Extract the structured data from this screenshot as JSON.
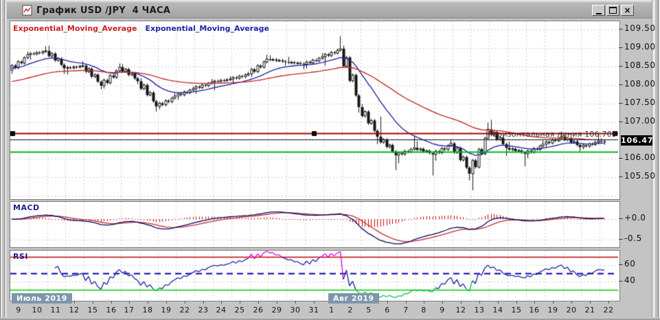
{
  "window": {
    "title": "График USD /JPY  4 ЧАСА",
    "buttons": {
      "minimize": "minimize",
      "maximize": "maximize",
      "close": "×"
    }
  },
  "legend": [
    {
      "label": "Exponential_Moving_Average",
      "color": "#cc2222"
    },
    {
      "label": "Exponential_Moving_Average",
      "color": "#2424a8"
    }
  ],
  "chart_data": [
    {
      "type": "candlestick",
      "title": "USD/JPY 4 hours",
      "x_labels": [
        "9",
        "10",
        "11",
        "12",
        "15",
        "16",
        "17",
        "18",
        "19",
        "22",
        "23",
        "24",
        "25",
        "26",
        "29",
        "30",
        "31",
        "1",
        "2",
        "5",
        "6",
        "7",
        "8",
        "9",
        "12",
        "13",
        "14",
        "15",
        "16",
        "19",
        "20",
        "21",
        "22"
      ],
      "month_labels": [
        {
          "text": "Июль 2019",
          "at_day": 0
        },
        {
          "text": "Авг 2019",
          "at_day": 17
        }
      ],
      "bars_per_day": 6,
      "last_day_bars": 2,
      "daily_ohlc": [
        [
          108.4,
          108.9,
          108.3,
          108.82
        ],
        [
          108.82,
          109.05,
          108.68,
          108.92
        ],
        [
          108.92,
          109.06,
          108.3,
          108.45
        ],
        [
          108.45,
          108.64,
          108.28,
          108.52
        ],
        [
          108.52,
          108.58,
          107.88,
          107.98
        ],
        [
          107.98,
          108.58,
          107.9,
          108.48
        ],
        [
          108.48,
          108.56,
          108.02,
          108.1
        ],
        [
          108.1,
          108.18,
          107.28,
          107.42
        ],
        [
          107.42,
          107.8,
          107.34,
          107.7
        ],
        [
          107.7,
          107.96,
          107.6,
          107.9
        ],
        [
          107.9,
          108.16,
          107.76,
          108.08
        ],
        [
          108.08,
          108.24,
          107.86,
          108.16
        ],
        [
          108.16,
          108.36,
          108.04,
          108.3
        ],
        [
          108.3,
          108.82,
          108.22,
          108.7
        ],
        [
          108.7,
          108.8,
          108.52,
          108.62
        ],
        [
          108.62,
          108.76,
          108.42,
          108.56
        ],
        [
          108.56,
          108.86,
          108.44,
          108.76
        ],
        [
          108.76,
          109.32,
          108.52,
          108.98
        ],
        [
          108.98,
          109.06,
          107.25,
          107.4
        ],
        [
          107.4,
          107.48,
          106.4,
          106.6
        ],
        [
          106.6,
          107.15,
          105.7,
          106.1
        ],
        [
          106.1,
          106.62,
          105.88,
          106.3
        ],
        [
          106.3,
          106.48,
          105.55,
          106.12
        ],
        [
          106.12,
          106.52,
          105.95,
          106.42
        ],
        [
          106.42,
          106.46,
          105.42,
          105.6
        ],
        [
          105.6,
          106.98,
          105.15,
          106.8
        ],
        [
          106.8,
          107.06,
          106.08,
          106.3
        ],
        [
          106.3,
          106.46,
          105.8,
          106.14
        ],
        [
          106.14,
          106.5,
          106.02,
          106.4
        ],
        [
          106.4,
          106.74,
          106.3,
          106.6
        ],
        [
          106.6,
          106.64,
          106.2,
          106.32
        ],
        [
          106.32,
          106.7,
          106.26,
          106.48
        ],
        [
          106.48,
          106.56,
          106.38,
          106.47
        ]
      ],
      "y_range": [
        104.95,
        109.72
      ],
      "y_ticks": [
        {
          "label": "109.50",
          "value": 109.5
        },
        {
          "label": "109.00",
          "value": 109.0
        },
        {
          "label": "108.50",
          "value": 108.5
        },
        {
          "label": "108.00",
          "value": 108.0
        },
        {
          "label": "107.50",
          "value": 107.5
        },
        {
          "label": "107.00",
          "value": 107.0
        },
        {
          "label": "106.00",
          "value": 106.0
        },
        {
          "label": "105.50",
          "value": 105.5
        }
      ],
      "gridline_values": [
        109.5,
        109.0,
        108.5,
        108.0,
        107.5,
        107.0,
        106.5,
        106.0,
        105.5,
        105.0
      ],
      "overlays": {
        "ema_fast": {
          "name": "Exponential_Moving_Average",
          "period": 18,
          "color": "#2424a8",
          "seed": 108.45
        },
        "ema_slow": {
          "name": "Exponential_Moving_Average",
          "period": 60,
          "color": "#c22c2c",
          "seed": 108.08
        }
      },
      "level_lines": [
        {
          "value": 106.703,
          "color": "#aa0000",
          "width": 2,
          "label": "Горизонтальная линия 106.703",
          "selected": true
        },
        {
          "value": 106.52,
          "color": "#1a1a1a",
          "width": 1,
          "label": ""
        },
        {
          "value": 106.2,
          "color": "#00b41e",
          "width": 2,
          "label": ""
        }
      ],
      "current_price": {
        "value": "106.47",
        "price": 106.47
      }
    },
    {
      "type": "macd",
      "label": "MACD",
      "params": {
        "fast": 12,
        "slow": 26,
        "signal": 9
      },
      "y_range": [
        -0.65,
        0.42
      ],
      "y_ticks": [
        {
          "label": "+0.0",
          "value": 0.0
        },
        {
          "label": "-0.5",
          "value": -0.5
        }
      ],
      "colors": {
        "macd": "#00005e",
        "signal": "#c22c2c",
        "histogram": "#cc0000"
      }
    },
    {
      "type": "rsi",
      "label": "RSI",
      "period": 14,
      "y_range": [
        18.3,
        77.5
      ],
      "y_ticks": [
        {
          "label": "60",
          "value": 60
        },
        {
          "label": "40",
          "value": 40
        }
      ],
      "levels": [
        {
          "value": 70,
          "color": "#c00000",
          "style": "solid"
        },
        {
          "value": 50,
          "color": "#0000a8",
          "style": "dashed"
        },
        {
          "value": 30,
          "color": "#00cc00",
          "style": "solid"
        }
      ],
      "colors": {
        "line": "#1c1ca0",
        "overbought": "#dd00dd",
        "oversold": "#00bb44"
      }
    }
  ]
}
